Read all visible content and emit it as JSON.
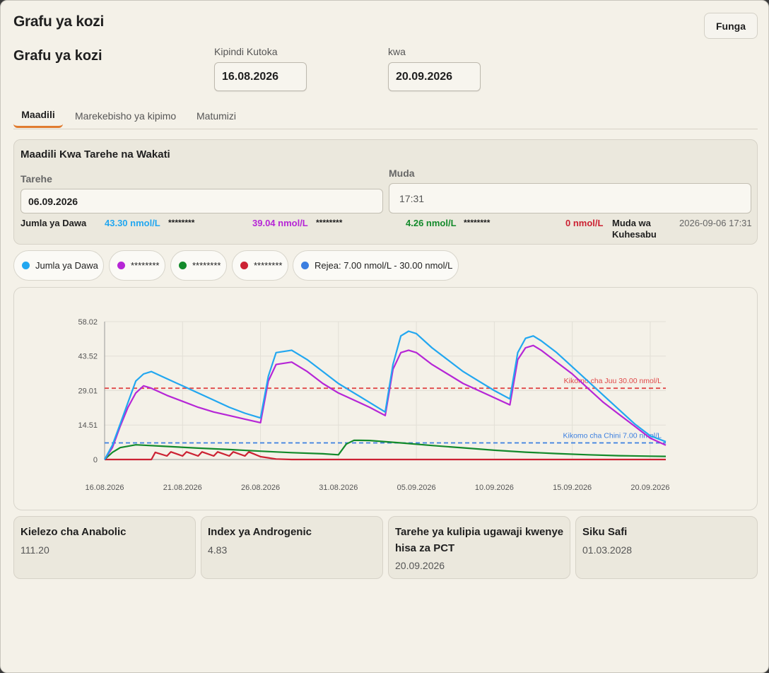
{
  "window": {
    "title": "Grafu ya kozi",
    "close_label": "Funga"
  },
  "header": {
    "subtitle": "Grafu ya kozi",
    "from_label": "Kipindi Kutoka",
    "from_value": "16.08.2026",
    "to_label": "kwa",
    "to_value": "20.09.2026"
  },
  "tabs": [
    {
      "label": "Maadili",
      "active": true
    },
    {
      "label": "Marekebisho ya kipimo",
      "active": false
    },
    {
      "label": "Matumizi",
      "active": false
    }
  ],
  "values_panel": {
    "title": "Maadili Kwa Tarehe na Wakati",
    "date_label": "Tarehe",
    "date_value": "06.09.2026",
    "time_label": "Muda",
    "time_value": "17:31",
    "total_label": "Jumla ya Dawa",
    "total_value": "43.30 nmol/L",
    "s1_name": "********",
    "s1_value": "39.04 nmol/L",
    "s2_name": "********",
    "s2_value": "4.26 nmol/L",
    "s3_name": "********",
    "s3_value": "0 nmol/L",
    "calc_label": "Muda wa Kuhesabu",
    "calc_value": "2026-09-06 17:31"
  },
  "legend": [
    {
      "label": "Jumla ya Dawa",
      "color": "#22a7f0"
    },
    {
      "label": "********",
      "color": "#b626d6"
    },
    {
      "label": "********",
      "color": "#138a2b"
    },
    {
      "label": "********",
      "color": "#cc2233"
    },
    {
      "label": "Rejea: 7.00 nmol/L - 30.00 nmol/L",
      "color": "#3b7fe0"
    }
  ],
  "chart_data": {
    "type": "line",
    "x_ticks": [
      "16.08.2026",
      "21.08.2026",
      "26.08.2026",
      "31.08.2026",
      "05.09.2026",
      "10.09.2026",
      "15.09.2026",
      "20.09.2026"
    ],
    "y_ticks": [
      "0",
      "14.51",
      "29.01",
      "43.52",
      "58.02"
    ],
    "ylim": [
      0,
      58.02
    ],
    "x_range": [
      "16.08.2026",
      "20.09.2026"
    ],
    "ref_upper": {
      "value": 30.0,
      "label": "Kikomo cha Juu 30.00 nmol/L",
      "color": "#e04848"
    },
    "ref_lower": {
      "value": 7.0,
      "label": "Kikomo cha Chini 7.00 nmol/L",
      "color": "#3b7fe0"
    },
    "series": [
      {
        "name": "Jumla ya Dawa",
        "color": "#22a7f0",
        "points": [
          [
            "16.08.2026",
            0
          ],
          [
            "16.08.2026 12:00",
            6
          ],
          [
            "17.08.2026",
            15
          ],
          [
            "17.08.2026 12:00",
            24
          ],
          [
            "18.08.2026",
            33
          ],
          [
            "18.08.2026 12:00",
            36
          ],
          [
            "19.08.2026",
            37
          ],
          [
            "20.08.2026",
            34
          ],
          [
            "21.08.2026",
            31
          ],
          [
            "22.08.2026",
            28
          ],
          [
            "23.08.2026",
            25
          ],
          [
            "24.08.2026",
            22
          ],
          [
            "25.08.2026",
            19.5
          ],
          [
            "26.08.2026",
            17.5
          ],
          [
            "26.08.2026 12:00",
            35
          ],
          [
            "27.08.2026",
            45
          ],
          [
            "28.08.2026",
            46
          ],
          [
            "29.08.2026",
            42
          ],
          [
            "30.08.2026",
            37
          ],
          [
            "31.08.2026",
            32
          ],
          [
            "01.09.2026",
            28
          ],
          [
            "02.09.2026",
            24
          ],
          [
            "03.09.2026",
            20
          ],
          [
            "03.09.2026 12:00",
            40
          ],
          [
            "04.09.2026",
            52
          ],
          [
            "04.09.2026 12:00",
            54
          ],
          [
            "05.09.2026",
            53
          ],
          [
            "06.09.2026",
            47
          ],
          [
            "07.09.2026",
            42
          ],
          [
            "08.09.2026",
            37
          ],
          [
            "09.09.2026",
            33
          ],
          [
            "10.09.2026",
            29
          ],
          [
            "11.09.2026",
            25.5
          ],
          [
            "11.09.2026 12:00",
            45
          ],
          [
            "12.09.2026",
            51
          ],
          [
            "12.09.2026 12:00",
            52
          ],
          [
            "13.09.2026",
            50
          ],
          [
            "14.09.2026",
            45
          ],
          [
            "15.09.2026",
            39
          ],
          [
            "16.09.2026",
            33
          ],
          [
            "17.09.2026",
            27
          ],
          [
            "18.09.2026",
            21
          ],
          [
            "19.09.2026",
            15
          ],
          [
            "20.09.2026",
            10
          ],
          [
            "21.09.2026",
            7.5
          ]
        ]
      },
      {
        "name": "********",
        "color": "#b626d6",
        "points": [
          [
            "16.08.2026",
            0
          ],
          [
            "16.08.2026 12:00",
            5
          ],
          [
            "17.08.2026",
            14
          ],
          [
            "17.08.2026 12:00",
            22
          ],
          [
            "18.08.2026",
            28
          ],
          [
            "18.08.2026 12:00",
            31
          ],
          [
            "19.08.2026",
            30
          ],
          [
            "20.08.2026",
            27
          ],
          [
            "21.08.2026",
            24.5
          ],
          [
            "22.08.2026",
            22
          ],
          [
            "23.08.2026",
            20
          ],
          [
            "24.08.2026",
            18.5
          ],
          [
            "25.08.2026",
            17
          ],
          [
            "26.08.2026",
            15.5
          ],
          [
            "26.08.2026 12:00",
            33
          ],
          [
            "27.08.2026",
            40
          ],
          [
            "28.08.2026",
            41
          ],
          [
            "29.08.2026",
            37
          ],
          [
            "30.08.2026",
            32
          ],
          [
            "31.08.2026",
            28
          ],
          [
            "01.09.2026",
            25
          ],
          [
            "02.09.2026",
            22
          ],
          [
            "03.09.2026",
            18.5
          ],
          [
            "03.09.2026 12:00",
            38
          ],
          [
            "04.09.2026",
            45
          ],
          [
            "04.09.2026 12:00",
            46
          ],
          [
            "05.09.2026",
            45
          ],
          [
            "06.09.2026",
            40
          ],
          [
            "07.09.2026",
            36
          ],
          [
            "08.09.2026",
            32
          ],
          [
            "09.09.2026",
            29
          ],
          [
            "10.09.2026",
            26
          ],
          [
            "11.09.2026",
            23
          ],
          [
            "11.09.2026 12:00",
            42
          ],
          [
            "12.09.2026",
            47
          ],
          [
            "12.09.2026 12:00",
            48
          ],
          [
            "13.09.2026",
            46
          ],
          [
            "14.09.2026",
            41
          ],
          [
            "15.09.2026",
            36
          ],
          [
            "16.09.2026",
            30
          ],
          [
            "17.09.2026",
            24
          ],
          [
            "18.09.2026",
            19
          ],
          [
            "19.09.2026",
            14
          ],
          [
            "20.09.2026",
            9
          ],
          [
            "21.09.2026",
            6
          ]
        ]
      },
      {
        "name": "********",
        "color": "#138a2b",
        "points": [
          [
            "16.08.2026",
            0
          ],
          [
            "16.08.2026 12:00",
            3
          ],
          [
            "17.08.2026",
            5
          ],
          [
            "18.08.2026",
            6.2
          ],
          [
            "20.08.2026",
            5.5
          ],
          [
            "22.08.2026",
            4.8
          ],
          [
            "24.08.2026",
            4.2
          ],
          [
            "26.08.2026",
            3.5
          ],
          [
            "28.08.2026",
            2.9
          ],
          [
            "30.08.2026",
            2.4
          ],
          [
            "31.08.2026",
            2.0
          ],
          [
            "31.08.2026 12:00",
            6.5
          ],
          [
            "01.09.2026",
            8.1
          ],
          [
            "02.09.2026",
            8.0
          ],
          [
            "04.09.2026",
            7.0
          ],
          [
            "06.09.2026",
            5.9
          ],
          [
            "08.09.2026",
            4.9
          ],
          [
            "10.09.2026",
            3.9
          ],
          [
            "12.09.2026",
            3.1
          ],
          [
            "14.09.2026",
            2.5
          ],
          [
            "16.09.2026",
            2.0
          ],
          [
            "18.09.2026",
            1.6
          ],
          [
            "20.09.2026",
            1.4
          ],
          [
            "21.09.2026",
            1.3
          ]
        ]
      },
      {
        "name": "********",
        "color": "#cc2233",
        "points": [
          [
            "16.08.2026",
            0
          ],
          [
            "19.08.2026",
            0
          ],
          [
            "19.08.2026 06:00",
            3
          ],
          [
            "20.08.2026",
            1.5
          ],
          [
            "20.08.2026 06:00",
            3.2
          ],
          [
            "21.08.2026",
            1.5
          ],
          [
            "21.08.2026 06:00",
            3.2
          ],
          [
            "22.08.2026",
            1.5
          ],
          [
            "22.08.2026 06:00",
            3.2
          ],
          [
            "23.08.2026",
            1.5
          ],
          [
            "23.08.2026 06:00",
            3.2
          ],
          [
            "24.08.2026",
            1.5
          ],
          [
            "24.08.2026 06:00",
            3.2
          ],
          [
            "25.08.2026",
            1.5
          ],
          [
            "25.08.2026 06:00",
            3.2
          ],
          [
            "26.08.2026",
            1.2
          ],
          [
            "27.08.2026",
            0.2
          ],
          [
            "28.08.2026",
            0
          ],
          [
            "21.09.2026",
            0
          ]
        ]
      }
    ]
  },
  "stats": [
    {
      "title": "Kielezo cha Anabolic",
      "value": "111.20"
    },
    {
      "title": "Index ya Androgenic",
      "value": "4.83"
    },
    {
      "title": "Tarehe ya kulipia ugawaji kwenye hisa za PCT",
      "value": "20.09.2026"
    },
    {
      "title": "Siku Safi",
      "value": "01.03.2028"
    }
  ]
}
